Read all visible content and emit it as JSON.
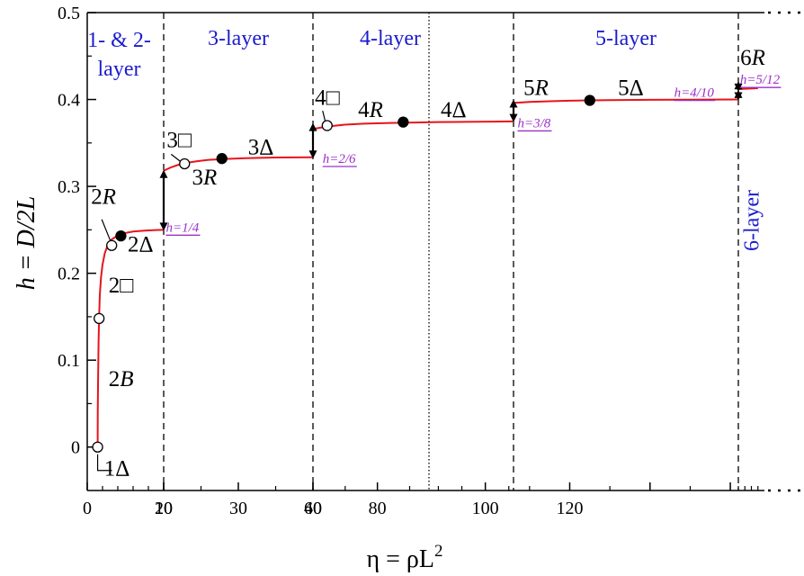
{
  "chart_data": {
    "type": "line",
    "title": "",
    "xlabel": "η = ρL",
    "xlabel_sup": "2",
    "ylabel_h": "h",
    "ylabel_rest": " = D/2L",
    "ylim": [
      -0.05,
      0.5
    ],
    "x_segments": [
      {
        "range": [
          0,
          10
        ],
        "ticks": [
          0,
          10
        ]
      },
      {
        "range": [
          10,
          30
        ],
        "ticks": [
          10,
          20,
          30
        ]
      },
      {
        "range": [
          30,
          48
        ],
        "ticks": [
          30,
          40
        ]
      },
      {
        "range": [
          48,
          66
        ],
        "ticks": [
          60
        ]
      },
      {
        "range": [
          66,
          122
        ],
        "ticks": [
          80,
          100,
          120
        ]
      },
      {
        "range": [
          122,
          130
        ],
        "ticks": []
      }
    ],
    "x_tick_labels": [
      "0",
      "10",
      "20",
      "30",
      "40",
      "60",
      "80",
      "100",
      "120"
    ],
    "y_ticks": [
      0,
      0.1,
      0.2,
      0.3,
      0.4,
      0.5
    ],
    "y_tick_labels": [
      "0",
      "0.1",
      "0.2",
      "0.3",
      "0.4",
      "0.5"
    ],
    "colors": {
      "curve": "#e8141c",
      "region": "#1c1ccc",
      "plateau": "#9b30c8",
      "marker": "#000000"
    },
    "regions": [
      {
        "label": "1- & 2-",
        "label2": "layer",
        "x": 5
      },
      {
        "label": "3-layer",
        "x": 20
      },
      {
        "label": "4-layer",
        "x": 42
      },
      {
        "label": "5-layer",
        "x": 94
      },
      {
        "label": "6-layer",
        "x": 126,
        "rotated": true
      }
    ],
    "boundaries": [
      {
        "x": 10,
        "style": "dashed"
      },
      {
        "x": 30,
        "style": "dashed"
      },
      {
        "x": 48,
        "style": "dotted"
      },
      {
        "x": 66,
        "style": "dashed"
      },
      {
        "x": 122,
        "style": "dashed"
      }
    ],
    "plateaus": [
      {
        "label": "h=1/4",
        "x": 10,
        "y_from": 0.25,
        "y_to": 0.318,
        "lx": 10.3,
        "ly": 0.248
      },
      {
        "label": "h=2/6",
        "x": 30,
        "y_from": 0.333,
        "y_to": 0.372,
        "lx": 31.5,
        "ly": 0.327
      },
      {
        "label": "h=3/8",
        "x": 66,
        "y_from": 0.375,
        "y_to": 0.399,
        "lx": 67,
        "ly": 0.368
      },
      {
        "label": "h=4/10",
        "x": 122,
        "y_from": 0.4,
        "y_to": 0.41,
        "lx": 106,
        "ly": 0.403
      },
      {
        "label": "h=5/12",
        "x": 122,
        "y_from": 0.41,
        "y_to": 0.42,
        "lx": 122.5,
        "ly": 0.418
      }
    ],
    "curves": [
      {
        "name": "",
        "x": [
          1.36,
          1.38,
          1.42,
          1.48,
          1.55,
          1.65,
          1.8,
          2.0,
          2.3,
          2.7,
          3.2,
          3.9,
          4.8,
          6.0,
          7.5,
          9.0,
          10.0
        ],
        "y": [
          0.0,
          0.04,
          0.08,
          0.12,
          0.15,
          0.175,
          0.195,
          0.21,
          0.223,
          0.233,
          0.239,
          0.243,
          0.246,
          0.248,
          0.249,
          0.2498,
          0.25
        ]
      },
      {
        "name": "",
        "x": [
          10.0,
          11.0,
          12.0,
          13.0,
          14.5,
          16.0,
          18.0,
          21.0,
          25.0,
          30.0
        ],
        "y": [
          0.318,
          0.322,
          0.325,
          0.327,
          0.329,
          0.3305,
          0.3315,
          0.3325,
          0.3332,
          0.3335
        ]
      },
      {
        "name": "",
        "x": [
          30.0,
          31.5,
          33.0,
          35.0,
          38.0,
          42.0,
          46.0,
          50.0,
          56.0,
          62.0,
          66.0
        ],
        "y": [
          0.366,
          0.368,
          0.3695,
          0.371,
          0.3722,
          0.373,
          0.3735,
          0.374,
          0.3743,
          0.3746,
          0.3748
        ]
      },
      {
        "name": "",
        "x": [
          66.0,
          70.0,
          75.0,
          80.0,
          85.0,
          90.0,
          100.0,
          110.0,
          122.0
        ],
        "y": [
          0.396,
          0.3972,
          0.398,
          0.3986,
          0.399,
          0.3993,
          0.3996,
          0.3998,
          0.4
        ]
      },
      {
        "name": "",
        "x": [
          122.0,
          125.0,
          128.0
        ],
        "y": [
          0.412,
          0.4125,
          0.413
        ]
      }
    ],
    "points": [
      {
        "label": "1Δ",
        "x": 1.36,
        "y": 0.0,
        "filled": false
      },
      {
        "label": "2□",
        "x": 1.55,
        "y": 0.148,
        "filled": false
      },
      {
        "label": "2R",
        "x": 3.2,
        "y": 0.232,
        "filled": false
      },
      {
        "label": "2Δ",
        "x": 4.4,
        "y": 0.243,
        "filled": true
      },
      {
        "label": "3□",
        "x": 12.8,
        "y": 0.326,
        "filled": false
      },
      {
        "label": "3R",
        "x": 17.8,
        "y": 0.332,
        "filled": true
      },
      {
        "label": "4□",
        "x": 32.2,
        "y": 0.37,
        "filled": false
      },
      {
        "label": "4R",
        "x": 44,
        "y": 0.374,
        "filled": true
      },
      {
        "label": "5R",
        "x": 85,
        "y": 0.399,
        "filled": true
      }
    ],
    "annotations": [
      {
        "text": "1Δ",
        "x": 2.2,
        "y": -0.033
      },
      {
        "text": "2B",
        "x": 2.8,
        "y": 0.07
      },
      {
        "text": "2□",
        "x": 2.8,
        "y": 0.178
      },
      {
        "text": "2R",
        "x": 0.5,
        "y": 0.28
      },
      {
        "text": "2Δ",
        "x": 5.3,
        "y": 0.225
      },
      {
        "text": "3□",
        "x": 10.4,
        "y": 0.345
      },
      {
        "text": "3R",
        "x": 13.8,
        "y": 0.302
      },
      {
        "text": "3Δ",
        "x": 21.3,
        "y": 0.337
      },
      {
        "text": "4□",
        "x": 30.3,
        "y": 0.394
      },
      {
        "text": "4R",
        "x": 37,
        "y": 0.38
      },
      {
        "text": "4Δ",
        "x": 50.5,
        "y": 0.38
      },
      {
        "text": "5R",
        "x": 68.5,
        "y": 0.405
      },
      {
        "text": "5Δ",
        "x": 92,
        "y": 0.405
      },
      {
        "text": "6R",
        "x": 122.6,
        "y": 0.44
      }
    ]
  }
}
